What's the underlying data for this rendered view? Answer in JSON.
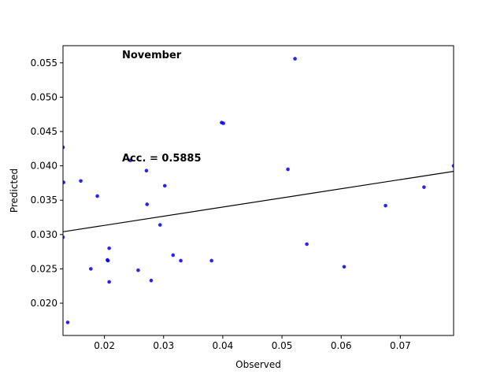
{
  "chart_data": {
    "type": "scatter",
    "title": "",
    "xlabel": "Observed",
    "ylabel": "Predicted",
    "xlim": [
      0.013,
      0.079
    ],
    "ylim": [
      0.0153,
      0.0575
    ],
    "grid": false,
    "annotations": {
      "month": "November",
      "accuracy": "Acc. = 0.5885"
    },
    "xticks": [
      {
        "value": 0.02,
        "label": "0.02"
      },
      {
        "value": 0.03,
        "label": "0.03"
      },
      {
        "value": 0.04,
        "label": "0.04"
      },
      {
        "value": 0.05,
        "label": "0.05"
      },
      {
        "value": 0.06,
        "label": "0.06"
      },
      {
        "value": 0.07,
        "label": "0.07"
      }
    ],
    "yticks": [
      {
        "value": 0.02,
        "label": "0.020"
      },
      {
        "value": 0.025,
        "label": "0.025"
      },
      {
        "value": 0.03,
        "label": "0.030"
      },
      {
        "value": 0.035,
        "label": "0.035"
      },
      {
        "value": 0.04,
        "label": "0.040"
      },
      {
        "value": 0.045,
        "label": "0.045"
      },
      {
        "value": 0.05,
        "label": "0.050"
      },
      {
        "value": 0.055,
        "label": "0.055"
      }
    ],
    "point_color": "#0000ee",
    "line_color": "#000000",
    "fit_line": {
      "x": [
        0.013,
        0.079
      ],
      "y": [
        0.0304,
        0.0392
      ]
    },
    "points": [
      {
        "x": 0.013,
        "y": 0.0427
      },
      {
        "x": 0.0131,
        "y": 0.0376
      },
      {
        "x": 0.013,
        "y": 0.0296
      },
      {
        "x": 0.0138,
        "y": 0.0172
      },
      {
        "x": 0.016,
        "y": 0.0378
      },
      {
        "x": 0.0177,
        "y": 0.025
      },
      {
        "x": 0.0188,
        "y": 0.0356
      },
      {
        "x": 0.0205,
        "y": 0.0263
      },
      {
        "x": 0.0206,
        "y": 0.0262
      },
      {
        "x": 0.0208,
        "y": 0.028
      },
      {
        "x": 0.0208,
        "y": 0.0231
      },
      {
        "x": 0.0244,
        "y": 0.0408
      },
      {
        "x": 0.0257,
        "y": 0.0248
      },
      {
        "x": 0.0271,
        "y": 0.0393
      },
      {
        "x": 0.0272,
        "y": 0.0344
      },
      {
        "x": 0.0279,
        "y": 0.0233
      },
      {
        "x": 0.0294,
        "y": 0.0314
      },
      {
        "x": 0.0302,
        "y": 0.0371
      },
      {
        "x": 0.0316,
        "y": 0.027
      },
      {
        "x": 0.0329,
        "y": 0.0262
      },
      {
        "x": 0.0381,
        "y": 0.0262
      },
      {
        "x": 0.0398,
        "y": 0.0463
      },
      {
        "x": 0.0401,
        "y": 0.0462
      },
      {
        "x": 0.051,
        "y": 0.0395
      },
      {
        "x": 0.0522,
        "y": 0.0556
      },
      {
        "x": 0.0542,
        "y": 0.0286
      },
      {
        "x": 0.0605,
        "y": 0.0253
      },
      {
        "x": 0.0675,
        "y": 0.0342
      },
      {
        "x": 0.074,
        "y": 0.0369
      },
      {
        "x": 0.079,
        "y": 0.04
      }
    ]
  }
}
